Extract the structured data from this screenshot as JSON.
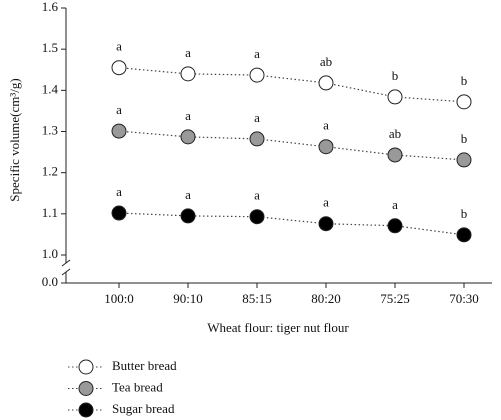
{
  "chart_data": {
    "type": "line",
    "x_label": "Wheat flour: tiger nut flour",
    "y_label": "Specific volume(cm³/g)",
    "categories": [
      "100:0",
      "90:10",
      "85:15",
      "80:20",
      "75:25",
      "70:30"
    ],
    "series": [
      {
        "name": "Butter bread",
        "color": "#ffffff",
        "values": [
          1.455,
          1.44,
          1.437,
          1.418,
          1.384,
          1.372
        ],
        "letters": [
          "a",
          "a",
          "a",
          "ab",
          "b",
          "b"
        ]
      },
      {
        "name": "Tea bread",
        "color": "#999999",
        "values": [
          1.301,
          1.287,
          1.282,
          1.263,
          1.243,
          1.231
        ],
        "letters": [
          "a",
          "a",
          "a",
          "a",
          "ab",
          "b"
        ]
      },
      {
        "name": "Sugar bread",
        "color": "#000000",
        "values": [
          1.102,
          1.095,
          1.093,
          1.076,
          1.071,
          1.049
        ],
        "letters": [
          "a",
          "a",
          "a",
          "a",
          "a",
          "b"
        ]
      }
    ],
    "ylim": [
      0,
      1.6
    ],
    "y_break": [
      0,
      1
    ],
    "yticks": [
      {
        "value": 0,
        "label": "0.0"
      },
      {
        "value": 1,
        "label": "1.0"
      },
      1.1,
      1.2,
      1.3,
      1.4,
      1.5,
      {
        "value": 1.6,
        "label": "1.6"
      }
    ],
    "legend": "bottom-left",
    "grid": false
  }
}
